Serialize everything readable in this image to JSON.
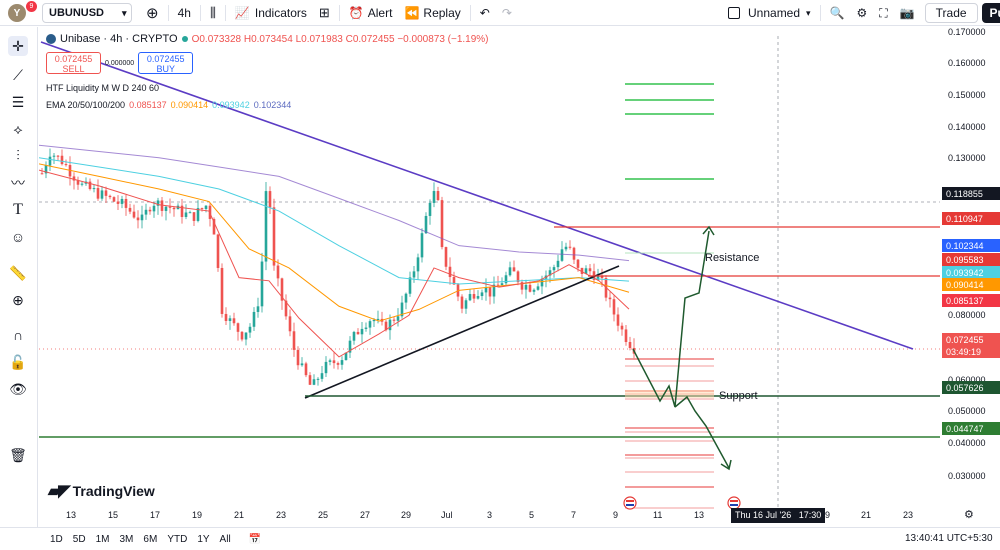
{
  "topbar": {
    "avatar_letter": "Y",
    "avatar_badge": "9",
    "symbol": "UBUNUSD",
    "interval": "4h",
    "indicators_label": "Indicators",
    "alert_label": "Alert",
    "replay_label": "Replay",
    "layout_name": "Unnamed",
    "trade_label": "Trade",
    "publish_label": "Pu"
  },
  "legend": {
    "title": "Unibase · 4h · CRYPTO",
    "ohlc": "O0.073328 H0.073454 L0.071983 C0.072455 −0.000873 (−1.19%)",
    "sell_price": "0.072455",
    "sell_label": "SELL",
    "spread": "0.000000",
    "buy_price": "0.072455",
    "buy_label": "BUY",
    "htf": "HTF Liquidity M W D 240 60",
    "ema_label": "EMA 20/50/100/200",
    "ema_values": [
      "0.085137",
      "0.090414",
      "0.093942",
      "0.102344"
    ]
  },
  "annotations": {
    "resistance": "Resistance",
    "support": "Support"
  },
  "price_axis": {
    "ticks": [
      "0.170000",
      "0.160000",
      "0.150000",
      "0.140000",
      "0.130000",
      "0.080000",
      "0.060000",
      "0.050000",
      "0.040000",
      "0.030000"
    ],
    "tags": [
      "0.118855",
      "0.110947",
      "0.102344",
      "0.095583",
      "0.093942",
      "0.090414",
      "0.085137",
      "0.072455",
      "03:49:19",
      "0.057626",
      "0.044747"
    ]
  },
  "time_axis": {
    "ticks": [
      "13",
      "15",
      "17",
      "19",
      "21",
      "23",
      "25",
      "27",
      "29",
      "Jul",
      "3",
      "5",
      "7",
      "9",
      "11",
      "13",
      "9",
      "21",
      "23"
    ],
    "cursor_label": "Thu 16 Jul '26   17:30"
  },
  "bottombar": {
    "ranges": [
      "1D",
      "5D",
      "1M",
      "3M",
      "6M",
      "YTD",
      "1Y",
      "All"
    ],
    "clock": "13:40:41 UTC+5:30"
  },
  "brand": "TradingView",
  "colors": {
    "up": "#26a69a",
    "down": "#ef5350",
    "ema20": "#ef5350",
    "ema50": "#ff9800",
    "ema100": "#4dd0e1",
    "ema200": "#5c6bc0",
    "trend": "#5b3cc4",
    "support": "#1e5631",
    "resistance": "#e53935"
  }
}
